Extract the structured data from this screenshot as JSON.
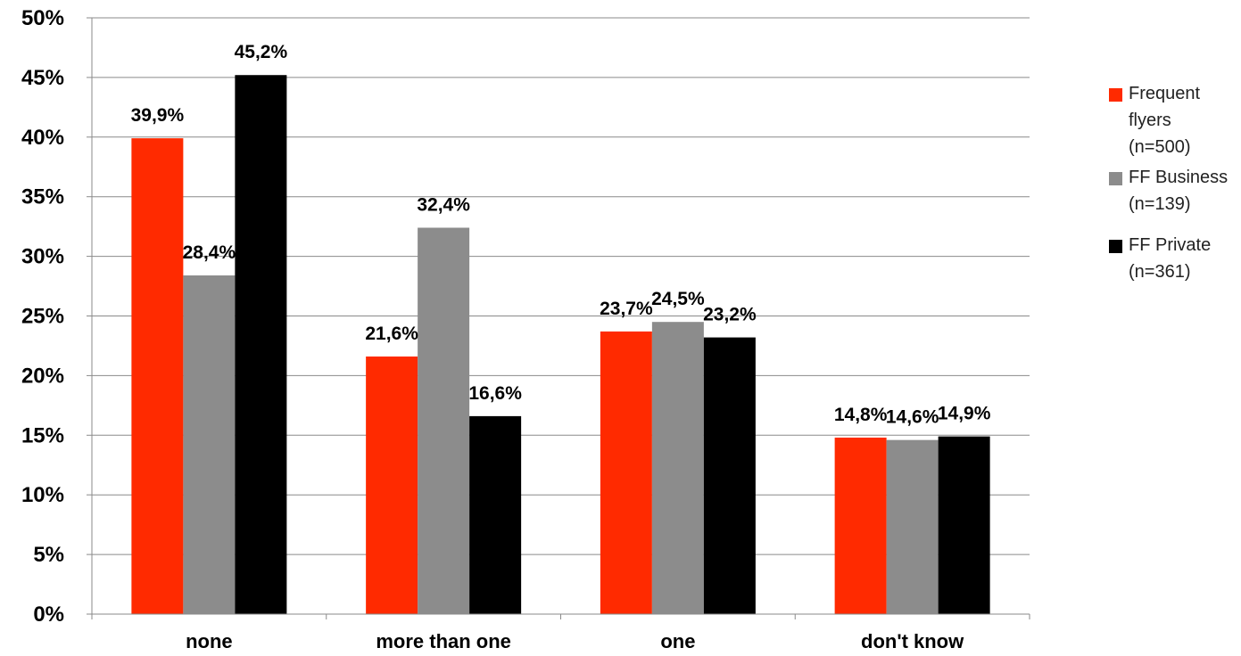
{
  "chart_data": {
    "type": "bar",
    "categories": [
      "none",
      "more than one",
      "one",
      "don't know"
    ],
    "series": [
      {
        "name": "Frequent flyers (n=500)",
        "legend_lines": [
          "Frequent",
          "flyers",
          "(n=500)"
        ],
        "color": "#ff2a00",
        "values": [
          39.9,
          21.6,
          23.7,
          14.8
        ],
        "labels": [
          "39,9%",
          "21,6%",
          "23,7%",
          "14,8%"
        ]
      },
      {
        "name": "FF Business (n=139)",
        "legend_lines": [
          "FF Business",
          "(n=139)"
        ],
        "color": "#8c8c8c",
        "values": [
          28.4,
          32.4,
          24.5,
          14.6
        ],
        "labels": [
          "28,4%",
          "32,4%",
          "24,5%",
          "14,6%"
        ]
      },
      {
        "name": "FF Private (n=361)",
        "legend_lines": [
          "FF Private",
          "(n=361)"
        ],
        "color": "#000000",
        "values": [
          45.2,
          16.6,
          23.2,
          14.9
        ],
        "labels": [
          "45,2%",
          "16,6%",
          "23,2%",
          "14,9%"
        ]
      }
    ],
    "y_ticks": [
      "0%",
      "5%",
      "10%",
      "15%",
      "20%",
      "25%",
      "30%",
      "35%",
      "40%",
      "45%",
      "50%"
    ],
    "ylim": [
      0,
      50
    ],
    "grid": true,
    "legend_position": "right"
  }
}
